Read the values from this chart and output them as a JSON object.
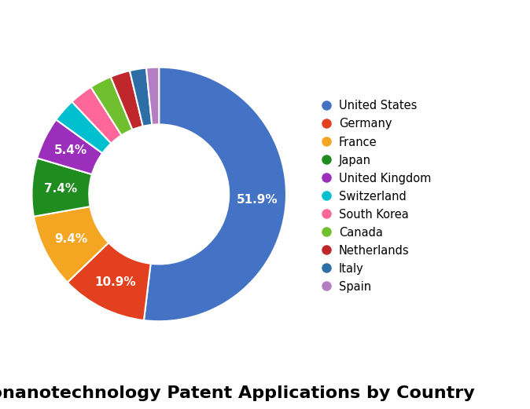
{
  "title": "Bionanotechnology Patent Applications by Country",
  "labels": [
    "United States",
    "Germany",
    "France",
    "Japan",
    "United Kingdom",
    "Switzerland",
    "South Korea",
    "Canada",
    "Netherlands",
    "Italy",
    "Spain"
  ],
  "values": [
    51.9,
    10.9,
    9.4,
    7.4,
    5.4,
    3.0,
    3.0,
    2.8,
    2.5,
    2.1,
    1.6
  ],
  "colors": [
    "#4472C4",
    "#E2401E",
    "#F4A622",
    "#1E8C1E",
    "#9B2EBA",
    "#00BFCF",
    "#FF6699",
    "#70BF2E",
    "#C0272D",
    "#2E6EA6",
    "#B57EC2"
  ],
  "wedge_edge_color": "white",
  "wedge_linewidth": 1.5,
  "donut_width": 0.45,
  "title_fontsize": 16,
  "title_fontweight": "bold",
  "label_fontsize": 11,
  "legend_fontsize": 10.5,
  "background_color": "#FFFFFF",
  "label_threshold": 4.0,
  "startangle": 90
}
